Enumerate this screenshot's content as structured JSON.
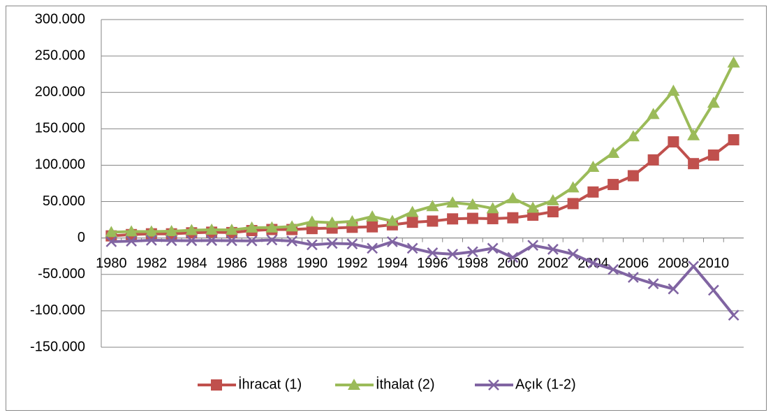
{
  "chart_data": {
    "type": "line",
    "categories": [
      "1980",
      null,
      "1982",
      null,
      "1984",
      null,
      "1986",
      null,
      "1988",
      null,
      "1990",
      null,
      "1992",
      null,
      "1994",
      null,
      "1996",
      null,
      "1998",
      null,
      "2000",
      null,
      "2002",
      null,
      "2004",
      null,
      "2006",
      null,
      "2008",
      null,
      "2010",
      null
    ],
    "series": [
      {
        "name": "İhracat (1)",
        "color": "#c0504d",
        "marker": "square",
        "values": [
          2910,
          4703,
          5746,
          5728,
          7134,
          7958,
          7457,
          10190,
          11662,
          11625,
          12959,
          13593,
          14715,
          15345,
          18106,
          21637,
          23225,
          26261,
          26974,
          26587,
          27775,
          31334,
          36059,
          47253,
          63167,
          73476,
          85535,
          107272,
          132027,
          102143,
          113883,
          134907
        ]
      },
      {
        "name": "İthalat (2)",
        "color": "#9bbb59",
        "marker": "triangle",
        "values": [
          7909,
          8933,
          8843,
          9235,
          10757,
          11344,
          11105,
          14158,
          14335,
          15792,
          22302,
          21047,
          22871,
          29428,
          23270,
          35709,
          43627,
          48559,
          45921,
          40671,
          54503,
          41399,
          51554,
          69340,
          97540,
          116774,
          139576,
          170063,
          201964,
          140928,
          185544,
          240842
        ]
      },
      {
        "name": "Açık (1-2)",
        "color": "#8064a2",
        "marker": "x",
        "values": [
          -4999,
          -4230,
          -3097,
          -3507,
          -3623,
          -3386,
          -3648,
          -3968,
          -2673,
          -4167,
          -9343,
          -7454,
          -8156,
          -14083,
          -5164,
          -14072,
          -20402,
          -22298,
          -18947,
          -14084,
          -26728,
          -10065,
          -15495,
          -22087,
          -34373,
          -43298,
          -54041,
          -62791,
          -69937,
          -38785,
          -71661,
          -105935
        ]
      }
    ],
    "ylim": [
      -150000,
      300000
    ],
    "yticks": [
      {
        "value": -150000,
        "label": "-150.000"
      },
      {
        "value": -100000,
        "label": "-100.000"
      },
      {
        "value": -50000,
        "label": "-50.000"
      },
      0,
      {
        "value": 50000,
        "label": "50.000"
      },
      {
        "value": 100000,
        "label": "100.000"
      },
      {
        "value": 150000,
        "label": "150.000"
      },
      {
        "value": 200000,
        "label": "200.000"
      },
      {
        "value": 250000,
        "label": "250.000"
      },
      {
        "value": 300000,
        "label": "300.000"
      }
    ],
    "grid": true,
    "legend": "bottom"
  }
}
